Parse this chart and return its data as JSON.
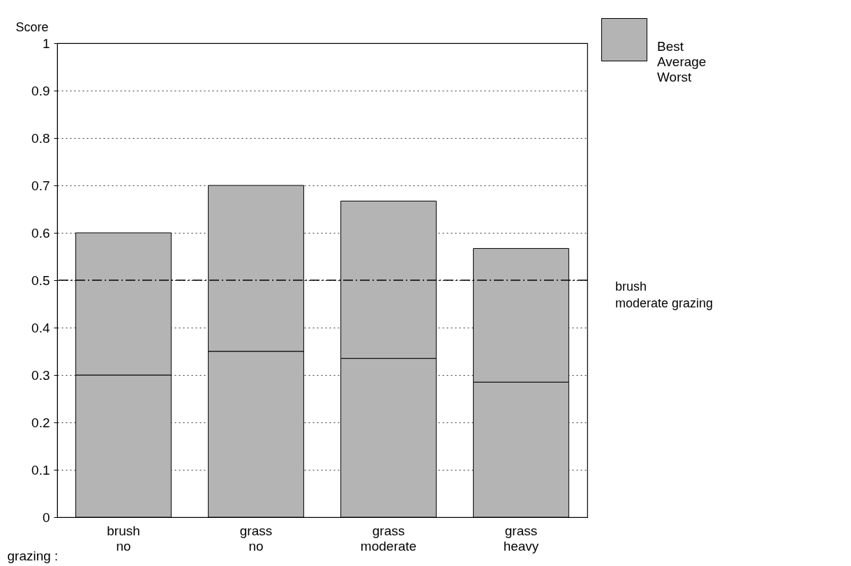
{
  "chart_data": {
    "type": "bar",
    "stacked": true,
    "ylabel": "Score",
    "xlabel": "grazing :",
    "categories": [
      "brush\nno",
      "grass\nno",
      "grass\nmoderate",
      "grass\nheavy"
    ],
    "series": [
      {
        "color": "#b4b4b4",
        "values": [
          0.3,
          0.35,
          0.335,
          0.285
        ]
      },
      {
        "color": "#b4b4b4",
        "values": [
          0.3,
          0.35,
          0.332,
          0.282
        ]
      }
    ],
    "ylim": [
      0,
      1
    ],
    "yticks": [
      0,
      0.1,
      0.2,
      0.3,
      0.4,
      0.5,
      0.6,
      0.7,
      0.8,
      0.9,
      1
    ],
    "grid": "y",
    "ref_lines": [
      {
        "axis": "y",
        "value": 0.5,
        "label": "brush\nmoderate grazing",
        "line_style": "dashdot",
        "color": "#000000"
      }
    ],
    "annotations": [
      "Best",
      "Average",
      "Worst"
    ]
  }
}
